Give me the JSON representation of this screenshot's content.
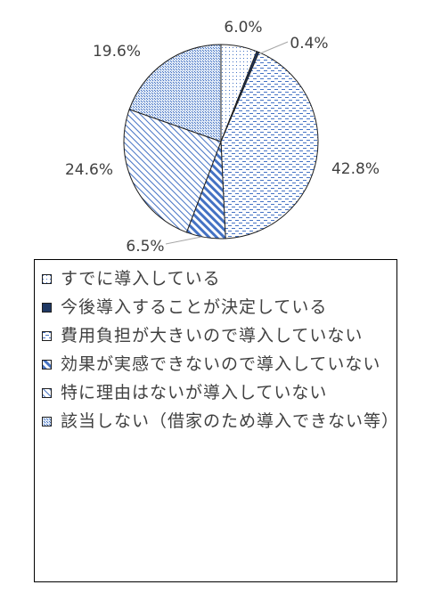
{
  "chart_data": {
    "type": "pie",
    "categories": [
      "すでに導入している",
      "今後導入することが決定している",
      "費用負担が大きいので導入していない",
      "効果が実感できないので導入していない",
      "特に理由はないが導入していない",
      "該当しない（借家のため導入できない等）"
    ],
    "values": [
      6.0,
      0.4,
      42.8,
      6.5,
      24.6,
      19.6
    ],
    "labels": [
      "6.0%",
      "0.4%",
      "42.8%",
      "6.5%",
      "24.6%",
      "19.6%"
    ],
    "title": "",
    "legend_position": "bottom",
    "start_angle_deg": 0,
    "direction": "clockwise",
    "slice_styles": [
      {
        "pattern": "dots-sparse",
        "color": "#4472c4"
      },
      {
        "pattern": "solid-dark",
        "color": "#1f3864"
      },
      {
        "pattern": "dashes-horizontal",
        "color": "#4472c4"
      },
      {
        "pattern": "diagonal-wide",
        "color": "#4472c4"
      },
      {
        "pattern": "diagonal-light",
        "color": "#4472c4"
      },
      {
        "pattern": "grid-dots",
        "color": "#4472c4"
      }
    ]
  },
  "legend": {
    "items": [
      {
        "label": "すでに導入している"
      },
      {
        "label": "今後導入することが決定している"
      },
      {
        "label": "費用負担が大きいので導入していない"
      },
      {
        "label": "効果が実感できないので導入していない"
      },
      {
        "label": "特に理由はないが導入していない"
      },
      {
        "label": "該当しない（借家のため導入できない等）"
      }
    ]
  }
}
